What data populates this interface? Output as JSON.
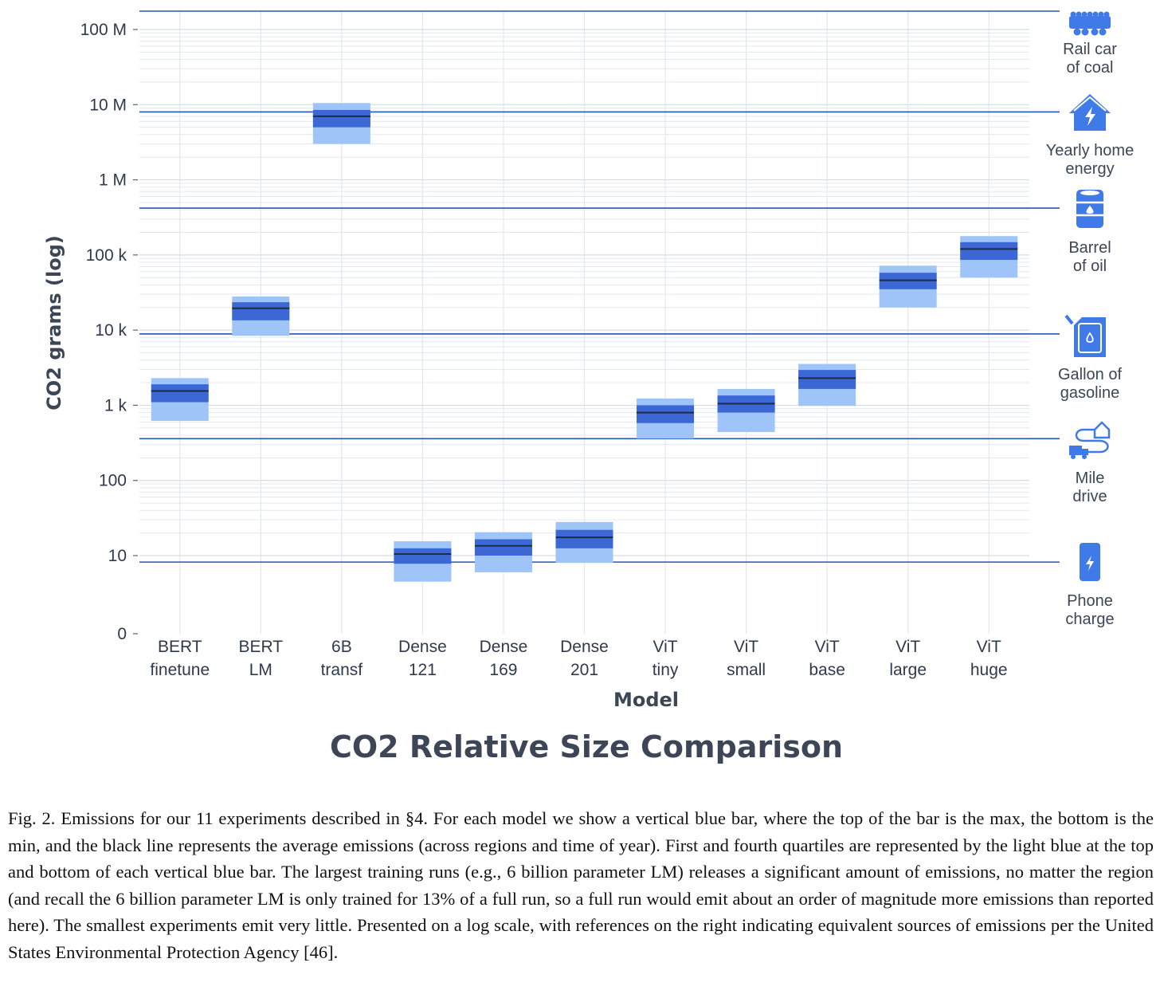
{
  "chart_data": {
    "type": "box",
    "title": "CO2 Relative Size Comparison",
    "xlabel": "Model",
    "ylabel": "CO2 grams (log)",
    "y_scale": "log",
    "y_ticks": [
      {
        "value": 0,
        "label": "0"
      },
      {
        "value": 10,
        "label": "10"
      },
      {
        "value": 100,
        "label": "100"
      },
      {
        "value": 1000,
        "label": "1 k"
      },
      {
        "value": 10000,
        "label": "10 k"
      },
      {
        "value": 100000,
        "label": "100 k"
      },
      {
        "value": 1000000,
        "label": "1 M"
      },
      {
        "value": 10000000,
        "label": "10 M"
      },
      {
        "value": 100000000,
        "label": "100 M"
      }
    ],
    "models": [
      {
        "label": [
          "BERT",
          "finetune"
        ],
        "min": 620,
        "q1": 1100,
        "mean": 1550,
        "q3": 1900,
        "max": 2300
      },
      {
        "label": [
          "BERT",
          "LM"
        ],
        "min": 8400,
        "q1": 13500,
        "mean": 19500,
        "q3": 23500,
        "max": 28000
      },
      {
        "label": [
          "6B",
          "transf"
        ],
        "min": 3000000,
        "q1": 5000000,
        "mean": 7000000,
        "q3": 8500000,
        "max": 10500000
      },
      {
        "label": [
          "Dense",
          "121"
        ],
        "min": 4.5,
        "q1": 7.8,
        "mean": 10.5,
        "q3": 12.5,
        "max": 15.5
      },
      {
        "label": [
          "Dense",
          "169"
        ],
        "min": 6,
        "q1": 10,
        "mean": 13.5,
        "q3": 16.5,
        "max": 20.5
      },
      {
        "label": [
          "Dense",
          "201"
        ],
        "min": 8,
        "q1": 12.5,
        "mean": 17.5,
        "q3": 22,
        "max": 28
      },
      {
        "label": [
          "ViT",
          "tiny"
        ],
        "min": 360,
        "q1": 580,
        "mean": 800,
        "q3": 1000,
        "max": 1230
      },
      {
        "label": [
          "ViT",
          "small"
        ],
        "min": 440,
        "q1": 800,
        "mean": 1050,
        "q3": 1350,
        "max": 1650
      },
      {
        "label": [
          "ViT",
          "base"
        ],
        "min": 980,
        "q1": 1650,
        "mean": 2300,
        "q3": 2950,
        "max": 3550
      },
      {
        "label": [
          "ViT",
          "large"
        ],
        "min": 20000,
        "q1": 35000,
        "mean": 46000,
        "q3": 58000,
        "max": 72000
      },
      {
        "label": [
          "ViT",
          "huge"
        ],
        "min": 50000,
        "q1": 86000,
        "mean": 120000,
        "q3": 148000,
        "max": 178000
      }
    ],
    "references": [
      {
        "label": [
          "Rail car",
          "of coal"
        ],
        "value": 180000000,
        "icon": "rail-car-icon"
      },
      {
        "label": [
          "Yearly home",
          "energy"
        ],
        "value": 8000000,
        "icon": "home-energy-icon"
      },
      {
        "label": [
          "Barrel",
          "of oil"
        ],
        "value": 420000,
        "icon": "oil-barrel-icon"
      },
      {
        "label": [
          "Gallon of",
          "gasoline"
        ],
        "value": 8900,
        "icon": "gas-can-icon"
      },
      {
        "label": [
          "Mile",
          "drive"
        ],
        "value": 360,
        "icon": "mile-drive-icon"
      },
      {
        "label": [
          "Phone",
          "charge"
        ],
        "value": 8.2,
        "icon": "phone-charge-icon"
      }
    ],
    "colors": {
      "outer": "#9fc4f7",
      "inner": "#3b68d4",
      "mean": "#1f2a44",
      "reference_line": "#2a55b8",
      "icon": "#3f7ae8",
      "grid": "#e3e8f0"
    }
  },
  "caption": "Fig. 2.  Emissions for our 11 experiments described in §4. For each model we show a vertical blue bar, where the top of the bar is the max, the bottom is the min, and the black line represents the average emissions (across regions and time of year). First and fourth quartiles are represented by the light blue at the top and bottom of each vertical blue bar. The largest training runs (e.g., 6 billion parameter LM) releases a significant amount of emissions, no matter the region (and recall the 6 billion parameter LM is only trained for 13% of a full run, so a full run would emit about an order of magnitude more emissions than reported here). The smallest experiments emit very little. Presented on a log scale, with references on the right indicating equivalent sources of emissions per the United States Environmental Protection Agency [46]."
}
